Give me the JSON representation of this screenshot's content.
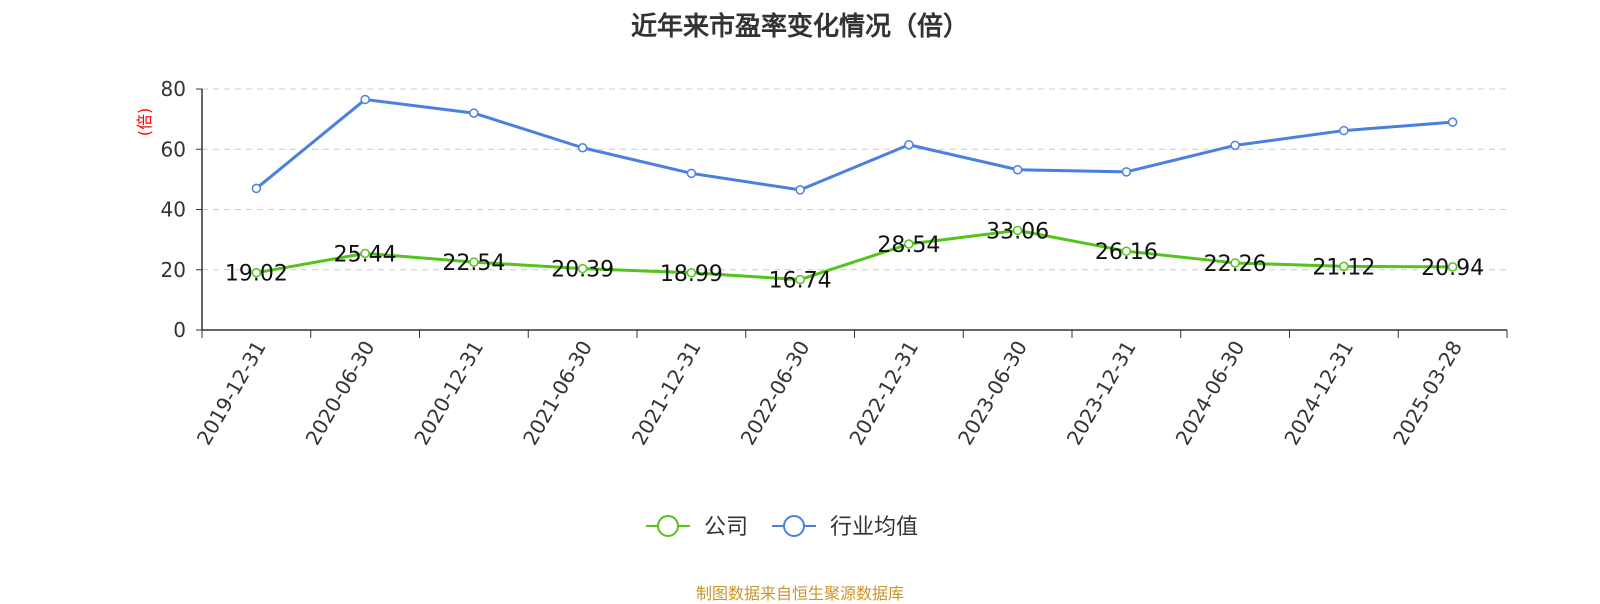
{
  "colors": {
    "company": "#52c41a",
    "industry": "#4a80e0",
    "source": "#c8962c",
    "ylabel": "#ff0000"
  },
  "chart_data": {
    "type": "line",
    "title": "近年来市盈率变化情况（倍）",
    "ylabel": "(倍)",
    "xlabel": "",
    "ylim": [
      0,
      80
    ],
    "yticks": [
      0,
      20,
      40,
      60,
      80
    ],
    "grid": true,
    "legend_position": "bottom",
    "categories": [
      "2019-12-31",
      "2020-06-30",
      "2020-12-31",
      "2021-06-30",
      "2021-12-31",
      "2022-06-30",
      "2022-12-31",
      "2023-06-30",
      "2023-12-31",
      "2024-06-30",
      "2024-12-31",
      "2025-03-28"
    ],
    "series": [
      {
        "name": "公司",
        "values": [
          19.02,
          25.44,
          22.54,
          20.39,
          18.99,
          16.74,
          28.54,
          33.06,
          26.16,
          22.26,
          21.12,
          20.94
        ],
        "labels": [
          "19.02",
          "25.44",
          "22.54",
          "20.39",
          "18.99",
          "16.74",
          "28.54",
          "33.06",
          "26.16",
          "22.26",
          "21.12",
          "20.94"
        ]
      },
      {
        "name": "行业均值",
        "values": [
          47,
          76.5,
          72,
          60.5,
          52,
          46.5,
          61.5,
          53.2,
          52.5,
          61.3,
          66.2,
          69
        ]
      }
    ],
    "source": "制图数据来自恒生聚源数据库"
  }
}
